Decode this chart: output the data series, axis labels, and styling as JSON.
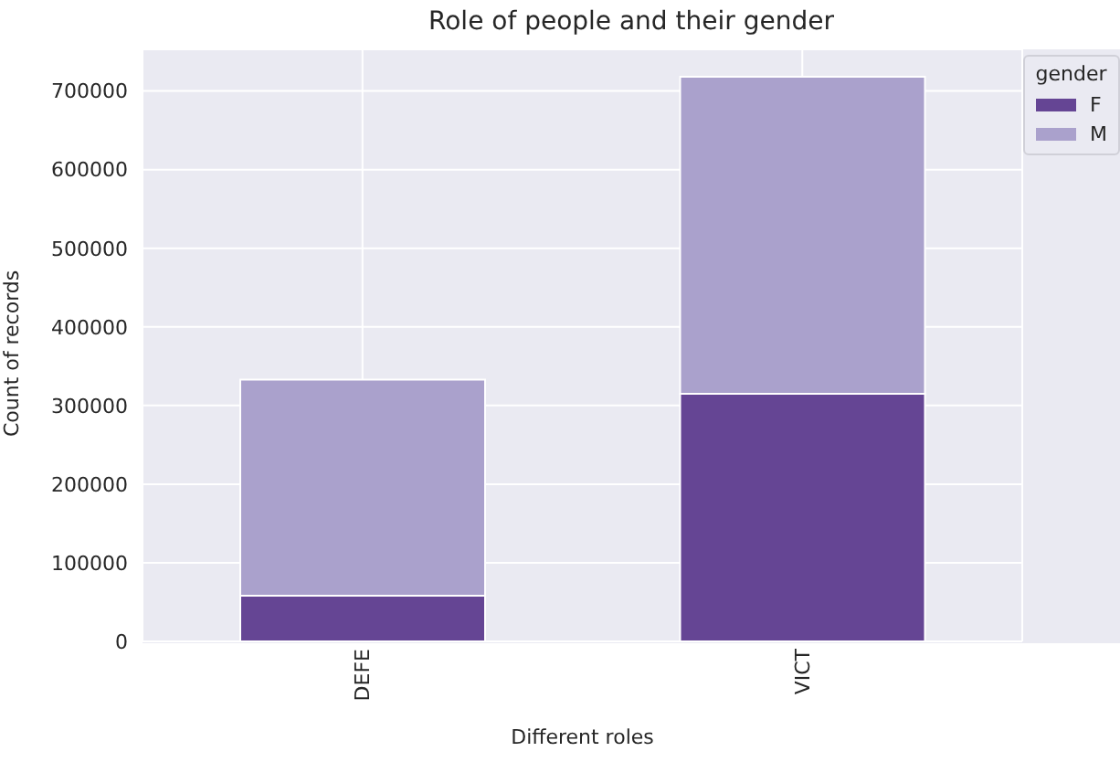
{
  "chart_data": {
    "type": "bar",
    "title": "Role of people and their gender",
    "xlabel": "Different roles",
    "ylabel": "Count of records",
    "legend_title": "gender",
    "categories": [
      "DEFE",
      "VICT"
    ],
    "series": [
      {
        "name": "F",
        "color": "#654594",
        "values": [
          58000,
          315000
        ]
      },
      {
        "name": "M",
        "color": "#aaa1cc",
        "values": [
          275000,
          403000
        ]
      }
    ],
    "stacked": true,
    "ylim": [
      0,
      753000
    ],
    "yticks": [
      0,
      100000,
      200000,
      300000,
      400000,
      500000,
      600000,
      700000
    ],
    "grid": true,
    "legend": "top right"
  }
}
